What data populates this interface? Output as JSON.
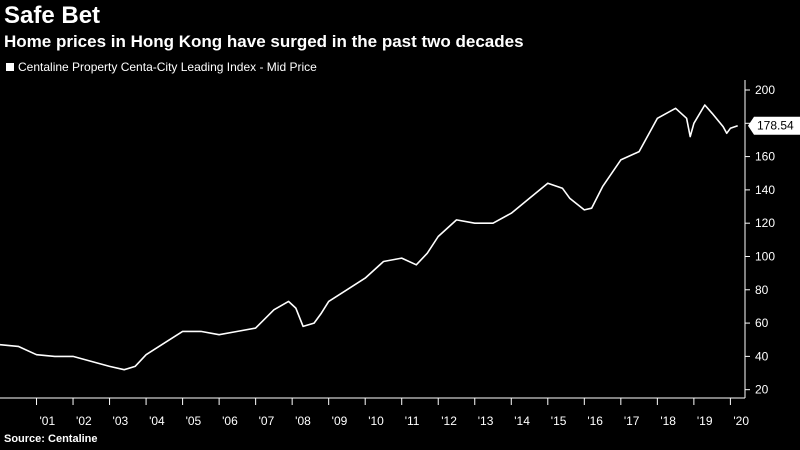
{
  "chart_data": {
    "type": "line",
    "title": "Safe Bet",
    "subtitle": "Home prices in Hong Kong have surged in the past two decades",
    "source": "Source: Centaline",
    "series": [
      {
        "name": "Centaline Property Centa-City Leading Index - Mid Price",
        "color": "#ffffff",
        "x": [
          2000.0,
          2000.5,
          2001.0,
          2001.5,
          2002.0,
          2002.5,
          2003.0,
          2003.4,
          2003.7,
          2004.0,
          2004.5,
          2005.0,
          2005.5,
          2006.0,
          2006.5,
          2007.0,
          2007.5,
          2007.9,
          2008.1,
          2008.3,
          2008.6,
          2008.8,
          2009.0,
          2009.5,
          2010.0,
          2010.5,
          2011.0,
          2011.4,
          2011.7,
          2012.0,
          2012.5,
          2013.0,
          2013.5,
          2014.0,
          2014.5,
          2015.0,
          2015.4,
          2015.6,
          2016.0,
          2016.2,
          2016.5,
          2017.0,
          2017.5,
          2018.0,
          2018.5,
          2018.8,
          2018.9,
          2019.0,
          2019.3,
          2019.5,
          2019.8,
          2019.9,
          2020.0,
          2020.2
        ],
        "values": [
          47,
          46,
          41,
          40,
          40,
          37,
          34,
          32,
          34,
          41,
          48,
          55,
          55,
          53,
          55,
          57,
          68,
          73,
          69,
          58,
          60,
          66,
          73,
          80,
          87,
          97,
          99,
          95,
          102,
          112,
          122,
          120,
          120,
          126,
          135,
          144,
          141,
          135,
          128,
          129,
          142,
          158,
          163,
          183,
          189,
          183,
          172,
          180,
          191,
          186,
          178,
          174,
          177,
          178.54
        ]
      }
    ],
    "x_ticks": [
      2001,
      2002,
      2003,
      2004,
      2005,
      2006,
      2007,
      2008,
      2009,
      2010,
      2011,
      2012,
      2013,
      2014,
      2015,
      2016,
      2017,
      2018,
      2019,
      2020
    ],
    "x_tick_labels": [
      "'01",
      "'02",
      "'03",
      "'04",
      "'05",
      "'06",
      "'07",
      "'08",
      "'09",
      "'10",
      "'11",
      "'12",
      "'13",
      "'14",
      "'15",
      "'16",
      "'17",
      "'18",
      "'19",
      "'20"
    ],
    "y_ticks": [
      20,
      40,
      60,
      80,
      100,
      120,
      140,
      160,
      180,
      200
    ],
    "y_tick_labels": [
      "20",
      "40",
      "60",
      "80",
      "100",
      "120",
      "140",
      "160",
      "180",
      "200"
    ],
    "xlim": [
      2000.0,
      2020.4
    ],
    "ylim": [
      15,
      206
    ],
    "last_value_label": "178.54",
    "grid": false,
    "y_axis_side": "right",
    "legend_position": "top-left"
  }
}
